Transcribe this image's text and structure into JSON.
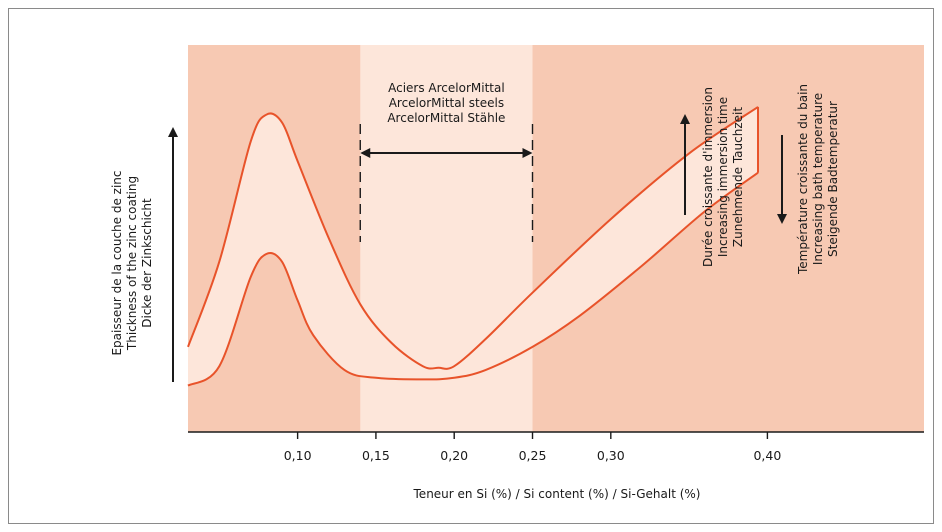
{
  "chart_data": {
    "type": "area",
    "x_axis": {
      "label": "Teneur en Si (%) / Si content (%) / Si-Gehalt (%)",
      "ticks": [
        0.1,
        0.15,
        0.2,
        0.25,
        0.3,
        0.4
      ],
      "tick_labels": [
        "0,10",
        "0,15",
        "0,20",
        "0,25",
        "0,30",
        "0,40"
      ],
      "range": [
        0.03,
        0.5
      ]
    },
    "y_axis": {
      "label_lines": [
        "Epaisseur de la couche de zinc",
        "Thickness of the zinc coating",
        "Dicke der Zinkschicht"
      ],
      "range": [
        0,
        1
      ]
    },
    "upper_curve": {
      "x": [
        0.03,
        0.05,
        0.07,
        0.08,
        0.09,
        0.1,
        0.12,
        0.14,
        0.16,
        0.18,
        0.19,
        0.2,
        0.22,
        0.25,
        0.3,
        0.35,
        0.394
      ],
      "y": [
        0.22,
        0.44,
        0.75,
        0.82,
        0.8,
        0.7,
        0.5,
        0.33,
        0.23,
        0.17,
        0.166,
        0.17,
        0.24,
        0.36,
        0.55,
        0.72,
        0.84
      ]
    },
    "lower_curve": {
      "x": [
        0.03,
        0.05,
        0.07,
        0.08,
        0.09,
        0.1,
        0.11,
        0.13,
        0.15,
        0.18,
        0.2,
        0.22,
        0.25,
        0.28,
        0.32,
        0.36,
        0.394
      ],
      "y": [
        0.12,
        0.17,
        0.4,
        0.46,
        0.44,
        0.34,
        0.25,
        0.16,
        0.14,
        0.136,
        0.14,
        0.16,
        0.22,
        0.3,
        0.43,
        0.57,
        0.67
      ]
    },
    "highlight_band": {
      "x_range": [
        0.14,
        0.25
      ],
      "label_lines": [
        "Aciers ArcelorMittal",
        "ArcelorMittal steels",
        "ArcelorMittal Stähle"
      ]
    },
    "annotations": {
      "immersion": [
        "Durée croissante d'immersion",
        "Increasing immersion time",
        "Zunehmende Tauchzeit"
      ],
      "temperature": [
        "Température croissante du bain",
        "Increasing bath temperature",
        "Steigende Badtemperatur"
      ]
    },
    "colors": {
      "outer_bg": "#f7c9b3",
      "band_bg": "#fde6da",
      "fill_between": "#fde6da",
      "curve": "#e8532a",
      "axis": "#1a1a1a"
    }
  }
}
